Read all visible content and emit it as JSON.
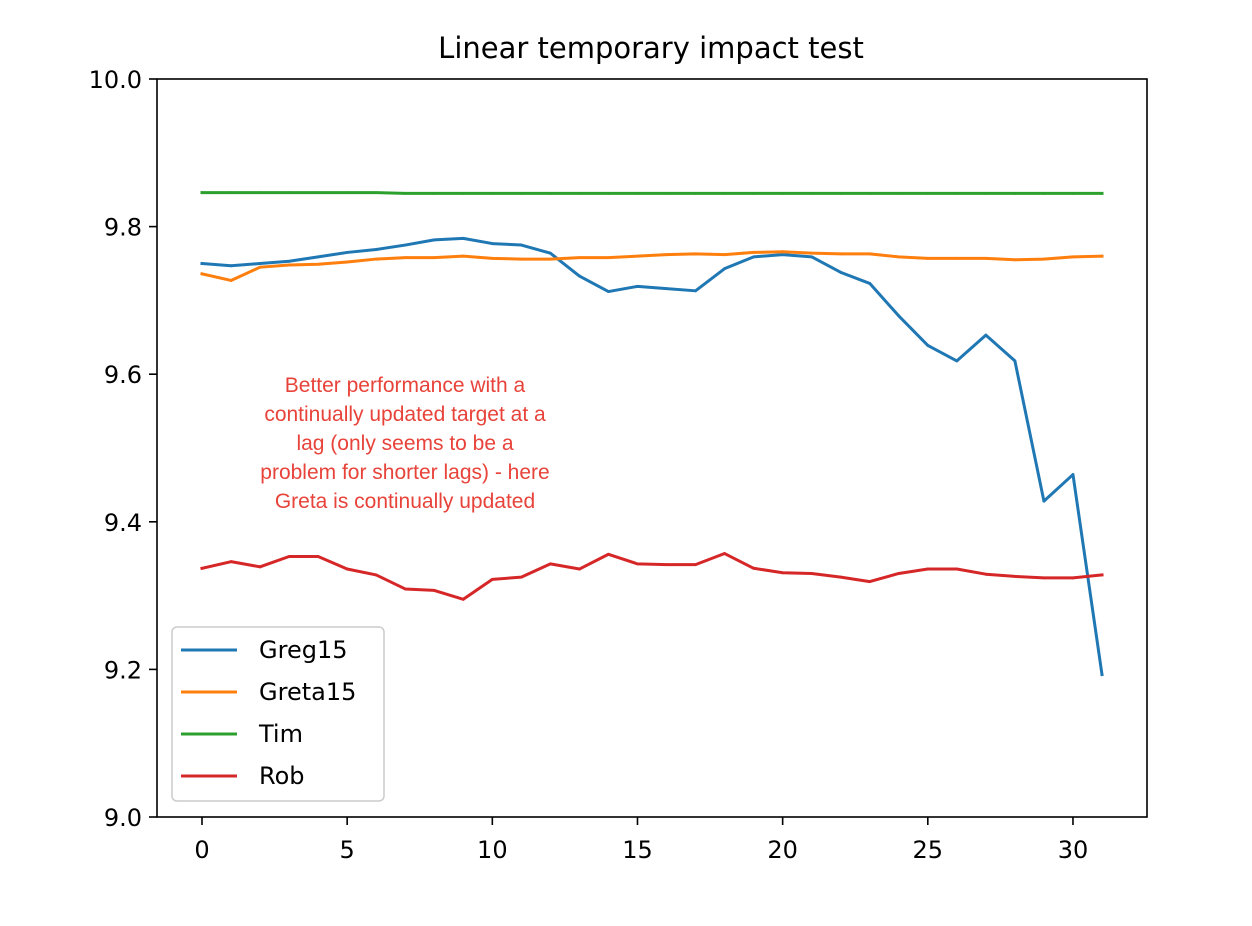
{
  "chart_data": {
    "type": "line",
    "title": "Linear temporary impact test",
    "xlabel": "",
    "ylabel": "",
    "xlim": [
      -1.55,
      32.55
    ],
    "ylim": [
      9.0,
      10.0
    ],
    "xticks": [
      0,
      5,
      10,
      15,
      20,
      25,
      30
    ],
    "yticks": [
      9.0,
      9.2,
      9.4,
      9.6,
      9.8,
      10.0
    ],
    "ytick_labels": [
      "9.0",
      "9.2",
      "9.4",
      "9.6",
      "9.8",
      "10.0"
    ],
    "grid": false,
    "legend_position": "lower-left",
    "series": [
      {
        "name": "Greg15",
        "color": "#1f77b4",
        "x": [
          0,
          1,
          2,
          3,
          4,
          5,
          6,
          7,
          8,
          9,
          10,
          11,
          12,
          13,
          14,
          15,
          16,
          17,
          18,
          19,
          20,
          21,
          22,
          23,
          24,
          25,
          26,
          27,
          28,
          29,
          30,
          31
        ],
        "values": [
          9.75,
          9.747,
          9.75,
          9.753,
          9.759,
          9.765,
          9.769,
          9.775,
          9.782,
          9.784,
          9.777,
          9.775,
          9.764,
          9.733,
          9.712,
          9.719,
          9.716,
          9.713,
          9.743,
          9.759,
          9.762,
          9.759,
          9.738,
          9.723,
          9.679,
          9.639,
          9.618,
          9.653,
          9.618,
          9.428,
          9.464,
          9.193
        ]
      },
      {
        "name": "Greta15",
        "color": "#ff7f0e",
        "x": [
          0,
          1,
          2,
          3,
          4,
          5,
          6,
          7,
          8,
          9,
          10,
          11,
          12,
          13,
          14,
          15,
          16,
          17,
          18,
          19,
          20,
          21,
          22,
          23,
          24,
          25,
          26,
          27,
          28,
          29,
          30,
          31
        ],
        "values": [
          9.736,
          9.727,
          9.745,
          9.748,
          9.749,
          9.752,
          9.756,
          9.758,
          9.758,
          9.76,
          9.757,
          9.756,
          9.756,
          9.758,
          9.758,
          9.76,
          9.762,
          9.763,
          9.762,
          9.765,
          9.766,
          9.764,
          9.763,
          9.763,
          9.759,
          9.757,
          9.757,
          9.757,
          9.755,
          9.756,
          9.759,
          9.76
        ]
      },
      {
        "name": "Tim",
        "color": "#2ca02c",
        "x": [
          0,
          1,
          2,
          3,
          4,
          5,
          6,
          7,
          8,
          9,
          10,
          11,
          12,
          13,
          14,
          15,
          16,
          17,
          18,
          19,
          20,
          21,
          22,
          23,
          24,
          25,
          26,
          27,
          28,
          29,
          30,
          31
        ],
        "values": [
          9.846,
          9.846,
          9.846,
          9.846,
          9.846,
          9.846,
          9.846,
          9.845,
          9.845,
          9.845,
          9.845,
          9.845,
          9.845,
          9.845,
          9.845,
          9.845,
          9.845,
          9.845,
          9.845,
          9.845,
          9.845,
          9.845,
          9.845,
          9.845,
          9.845,
          9.845,
          9.845,
          9.845,
          9.845,
          9.845,
          9.845,
          9.845
        ]
      },
      {
        "name": "Rob",
        "color": "#d62728",
        "x": [
          0,
          1,
          2,
          3,
          4,
          5,
          6,
          7,
          8,
          9,
          10,
          11,
          12,
          13,
          14,
          15,
          16,
          17,
          18,
          19,
          20,
          21,
          22,
          23,
          24,
          25,
          26,
          27,
          28,
          29,
          30,
          31
        ],
        "values": [
          9.337,
          9.346,
          9.339,
          9.353,
          9.353,
          9.336,
          9.328,
          9.309,
          9.307,
          9.295,
          9.322,
          9.325,
          9.343,
          9.336,
          9.356,
          9.343,
          9.342,
          9.342,
          9.357,
          9.337,
          9.331,
          9.33,
          9.325,
          9.319,
          9.33,
          9.336,
          9.336,
          9.329,
          9.326,
          9.324,
          9.324,
          9.328
        ]
      }
    ],
    "annotation": {
      "color": "#e8433a",
      "lines": [
        "Better performance with a",
        "continually updated target at a",
        "lag (only seems to be a",
        "problem for shorter lags) - here",
        "Greta is continually updated"
      ]
    }
  }
}
